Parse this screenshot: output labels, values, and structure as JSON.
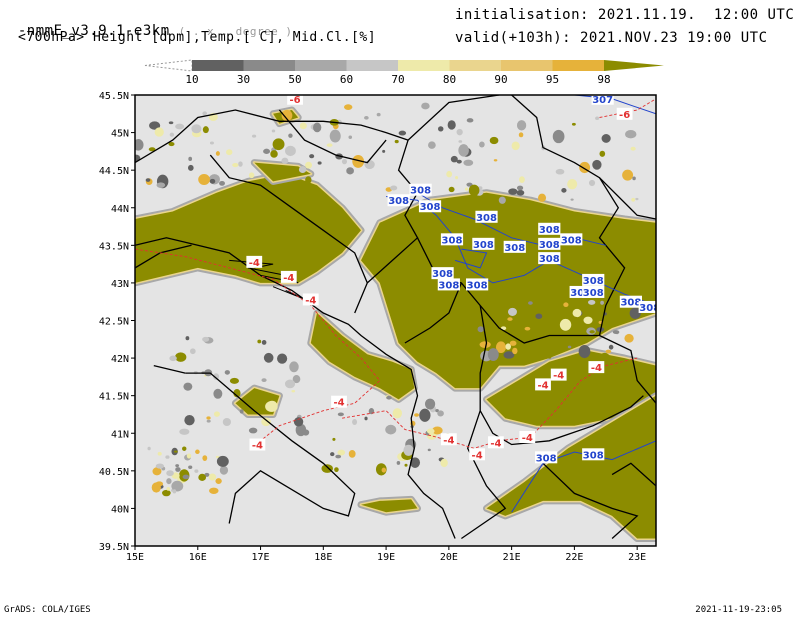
{
  "header": {
    "model": "-nmmE_v3.9.1-e3km",
    "units": "( . x . degree )",
    "subtitle": "<700hPa> Height [dpm],Temp.[ C], Mid.Cl.[%]",
    "init": "initialisation: 2021.11.19.  12:00 UTC",
    "valid": "valid(+103h): 2021.NOV.23 19:00 UTC"
  },
  "colorbar": {
    "labels": [
      "10",
      "30",
      "50",
      "60",
      "70",
      "80",
      "90",
      "95",
      "98"
    ],
    "colors": [
      "#616161",
      "#8a8a8a",
      "#a8a8a8",
      "#c6c6c6",
      "#eeeaaa",
      "#ead58e",
      "#e8c56e",
      "#e6b23a",
      "#8c8c00"
    ]
  },
  "map": {
    "lat_ticks": [
      "45.5N",
      "45N",
      "44.5N",
      "44N",
      "43.5N",
      "43N",
      "42.5N",
      "42N",
      "41.5N",
      "41N",
      "40.5N",
      "40N",
      "39.5N"
    ],
    "lon_ticks": [
      "15E",
      "16E",
      "17E",
      "18E",
      "19E",
      "20E",
      "21E",
      "22E",
      "23E"
    ],
    "cloud_color": "#8c8c00",
    "land_color": "#e4e4e4",
    "height_labels": [
      {
        "text": "307",
        "lon": 22.45,
        "lat": 45.45
      },
      {
        "text": "308",
        "lon": 19.2,
        "lat": 44.1
      },
      {
        "text": "308",
        "lon": 19.55,
        "lat": 44.24
      },
      {
        "text": "308",
        "lon": 19.7,
        "lat": 44.02
      },
      {
        "text": "308",
        "lon": 20.6,
        "lat": 43.88
      },
      {
        "text": "308",
        "lon": 20.05,
        "lat": 43.58
      },
      {
        "text": "308",
        "lon": 20.55,
        "lat": 43.52
      },
      {
        "text": "308",
        "lon": 21.05,
        "lat": 43.48
      },
      {
        "text": "308",
        "lon": 21.6,
        "lat": 43.72
      },
      {
        "text": "308",
        "lon": 21.6,
        "lat": 43.52
      },
      {
        "text": "308",
        "lon": 21.95,
        "lat": 43.58
      },
      {
        "text": "308",
        "lon": 21.6,
        "lat": 43.33
      },
      {
        "text": "308",
        "lon": 19.9,
        "lat": 43.13
      },
      {
        "text": "308",
        "lon": 20.0,
        "lat": 42.98
      },
      {
        "text": "308",
        "lon": 20.45,
        "lat": 42.98
      },
      {
        "text": "308",
        "lon": 22.3,
        "lat": 43.04
      },
      {
        "text": "308",
        "lon": 22.1,
        "lat": 42.88
      },
      {
        "text": "308",
        "lon": 22.3,
        "lat": 42.88
      },
      {
        "text": "308",
        "lon": 22.9,
        "lat": 42.75
      },
      {
        "text": "308",
        "lon": 23.2,
        "lat": 42.68
      },
      {
        "text": "308",
        "lon": 21.55,
        "lat": 40.68
      },
      {
        "text": "308",
        "lon": 22.3,
        "lat": 40.72
      }
    ],
    "temp_labels": [
      {
        "text": "-6",
        "lon": 17.55,
        "lat": 45.45
      },
      {
        "text": "-6",
        "lon": 22.8,
        "lat": 45.25
      },
      {
        "text": "-4",
        "lon": 16.9,
        "lat": 43.28
      },
      {
        "text": "-4",
        "lon": 17.45,
        "lat": 43.08
      },
      {
        "text": "-4",
        "lon": 17.8,
        "lat": 42.78
      },
      {
        "text": "-4",
        "lon": 18.25,
        "lat": 41.42
      },
      {
        "text": "-4",
        "lon": 16.95,
        "lat": 40.85
      },
      {
        "text": "-4",
        "lon": 21.5,
        "lat": 41.65
      },
      {
        "text": "-4",
        "lon": 21.75,
        "lat": 41.78
      },
      {
        "text": "-4",
        "lon": 22.35,
        "lat": 41.88
      },
      {
        "text": "-4",
        "lon": 20.0,
        "lat": 40.92
      },
      {
        "text": "-4",
        "lon": 20.45,
        "lat": 40.72
      },
      {
        "text": "-4",
        "lon": 20.75,
        "lat": 40.88
      },
      {
        "text": "-4",
        "lon": 21.25,
        "lat": 40.95
      }
    ]
  },
  "footer": {
    "left": "GrADS: COLA/IGES",
    "right": "2021-11-19-23:05"
  }
}
